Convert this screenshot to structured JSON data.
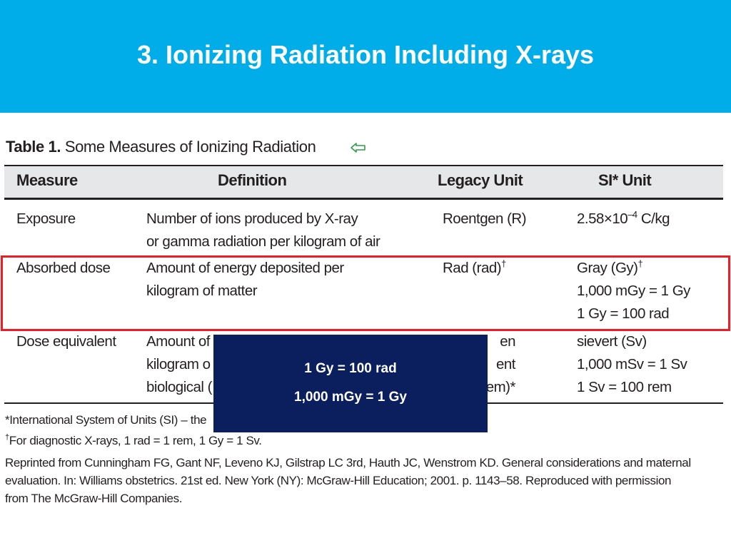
{
  "header": {
    "title": "3. Ionizing Radiation Including X-rays"
  },
  "table": {
    "label": "Table 1.",
    "caption": "Some Measures of Ionizing Radiation",
    "columns": [
      "Measure",
      "Definition",
      "Legacy Unit",
      "SI* Unit"
    ],
    "rows": [
      [
        [
          "Exposure"
        ],
        [
          "Number of ions produced by X-ray",
          "or gamma radiation per kilogram of air"
        ],
        [
          "Roentgen (R)"
        ],
        [
          {
            "text": "2.58×10",
            "sup": "–4",
            "after": " C/kg"
          }
        ]
      ],
      [
        [
          "Absorbed dose"
        ],
        [
          "Amount of energy deposited per",
          "kilogram of matter"
        ],
        [
          {
            "text": "Rad (rad)",
            "sup": "†"
          }
        ],
        [
          {
            "text": "Gray (Gy)",
            "sup": "†"
          },
          "1,000 mGy = 1 Gy",
          "1 Gy = 100 rad"
        ]
      ],
      [
        [
          "Dose equivalent"
        ],
        [
          "Amount of",
          "kilogram o",
          "biological ("
        ],
        [
          "en",
          "ent",
          "em)*"
        ],
        [
          "sievert (Sv)",
          "1,000 mSv = 1 Sv",
          "1 Sv = 100 rem"
        ]
      ]
    ],
    "footnotes": [
      "*International System of Units (SI) – the",
      {
        "sup": "†",
        "text": "For diagnostic X-rays, 1 rad = 1 rem, 1 Gy = 1 Sv."
      }
    ],
    "source": [
      "Reprinted from Cunningham FG, Gant NF, Leveno KJ, Gilstrap LC 3rd, Hauth JC, Wenstrom KD. General considerations and maternal",
      "evaluation. In: Williams obstetrics. 21st ed. New York (NY): McGraw-Hill Education; 2001. p. 1143–58. Reproduced with permission",
      "from The McGraw-Hill Companies."
    ]
  },
  "callout": {
    "lines": [
      "1 Gy = 100 rad",
      "1,000 mGy = 1 Gy"
    ]
  }
}
